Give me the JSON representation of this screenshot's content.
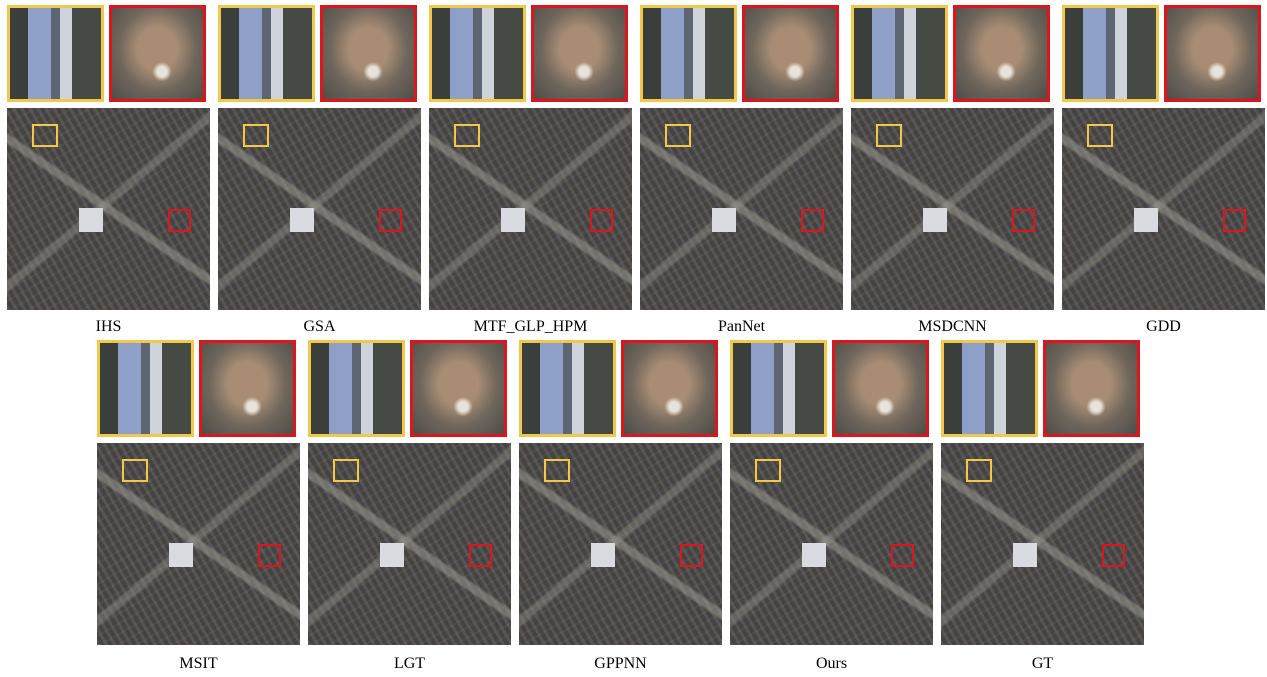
{
  "rows": [
    {
      "panels": [
        {
          "label": "IHS"
        },
        {
          "label": "GSA"
        },
        {
          "label": "MTF_GLP_HPM"
        },
        {
          "label": "PanNet"
        },
        {
          "label": "MSDCNN"
        },
        {
          "label": "GDD"
        }
      ]
    },
    {
      "panels": [
        {
          "label": "MSIT"
        },
        {
          "label": "LGT"
        },
        {
          "label": "GPPNN"
        },
        {
          "label": "Ours"
        },
        {
          "label": "GT"
        }
      ]
    }
  ]
}
